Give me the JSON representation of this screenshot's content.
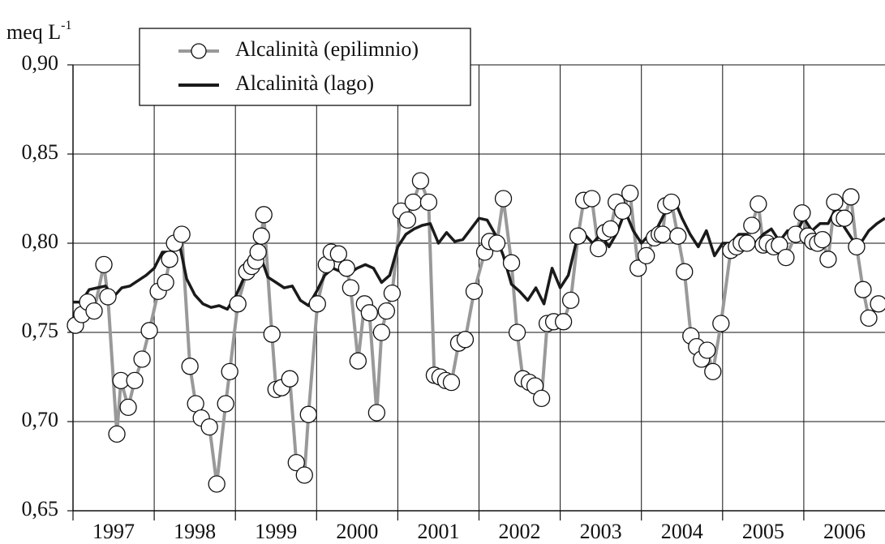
{
  "chart_data": {
    "type": "line",
    "y_label": "meq L",
    "y_label_sup": "-1",
    "ylim": [
      0.65,
      0.9
    ],
    "yticks": [
      {
        "value": 0.65,
        "label": "0,65"
      },
      {
        "value": 0.7,
        "label": "0,70"
      },
      {
        "value": 0.75,
        "label": "0,75"
      },
      {
        "value": 0.8,
        "label": "0,80"
      },
      {
        "value": 0.85,
        "label": "0,85"
      },
      {
        "value": 0.9,
        "label": "0,90"
      }
    ],
    "xlim": [
      1997,
      2007
    ],
    "xticks": [
      {
        "value": 1997.5,
        "label": "1997"
      },
      {
        "value": 1998.5,
        "label": "1998"
      },
      {
        "value": 1999.5,
        "label": "1999"
      },
      {
        "value": 2000.5,
        "label": "2000"
      },
      {
        "value": 2001.5,
        "label": "2001"
      },
      {
        "value": 2002.5,
        "label": "2002"
      },
      {
        "value": 2003.5,
        "label": "2003"
      },
      {
        "value": 2004.5,
        "label": "2004"
      },
      {
        "value": 2005.5,
        "label": "2005"
      },
      {
        "value": 2006.5,
        "label": "2006"
      }
    ],
    "xgrid": [
      1997,
      1998,
      1999,
      2000,
      2001,
      2002,
      2003,
      2004,
      2005,
      2006
    ],
    "grid": true,
    "legend": "top-left",
    "series": [
      {
        "name": "Alcalinità (epilimnio)",
        "color": "#999999",
        "marker": "circle",
        "x": [
          1997.03,
          1997.11,
          1997.18,
          1997.26,
          1997.38,
          1997.43,
          1997.54,
          1997.59,
          1997.68,
          1997.76,
          1997.85,
          1997.94,
          1998.05,
          1998.14,
          1998.19,
          1998.25,
          1998.34,
          1998.44,
          1998.51,
          1998.58,
          1998.68,
          1998.77,
          1998.88,
          1998.93,
          1999.03,
          1999.14,
          1999.2,
          1999.25,
          1999.28,
          1999.32,
          1999.35,
          1999.45,
          1999.5,
          1999.57,
          1999.67,
          1999.75,
          1999.85,
          1999.9,
          2000.01,
          2000.12,
          2000.18,
          2000.27,
          2000.37,
          2000.42,
          2000.51,
          2000.59,
          2000.65,
          2000.74,
          2000.8,
          2000.86,
          2000.93,
          2001.04,
          2001.12,
          2001.19,
          2001.28,
          2001.38,
          2001.45,
          2001.52,
          2001.59,
          2001.66,
          2001.75,
          2001.83,
          2001.94,
          2002.07,
          2002.13,
          2002.22,
          2002.3,
          2002.4,
          2002.47,
          2002.54,
          2002.62,
          2002.69,
          2002.77,
          2002.84,
          2002.92,
          2003.04,
          2003.13,
          2003.22,
          2003.29,
          2003.39,
          2003.47,
          2003.55,
          2003.62,
          2003.69,
          2003.77,
          2003.86,
          2003.96,
          2004.06,
          2004.16,
          2004.22,
          2004.26,
          2004.3,
          2004.37,
          2004.45,
          2004.53,
          2004.61,
          2004.68,
          2004.74,
          2004.81,
          2004.88,
          2004.98,
          2005.1,
          2005.17,
          2005.23,
          2005.3,
          2005.36,
          2005.44,
          2005.5,
          2005.55,
          2005.63,
          2005.7,
          2005.78,
          2005.9,
          2005.98,
          2006.05,
          2006.11,
          2006.17,
          2006.23,
          2006.3,
          2006.38,
          2006.44,
          2006.5,
          2006.58,
          2006.65,
          2006.73,
          2006.8,
          2006.92
        ],
        "values": [
          0.754,
          0.76,
          0.767,
          0.762,
          0.788,
          0.77,
          0.693,
          0.723,
          0.708,
          0.723,
          0.735,
          0.751,
          0.773,
          0.778,
          0.791,
          0.8,
          0.805,
          0.731,
          0.71,
          0.702,
          0.697,
          0.665,
          0.71,
          0.728,
          0.766,
          0.784,
          0.787,
          0.79,
          0.795,
          0.804,
          0.816,
          0.749,
          0.718,
          0.719,
          0.724,
          0.677,
          0.67,
          0.704,
          0.766,
          0.788,
          0.795,
          0.794,
          0.786,
          0.775,
          0.734,
          0.766,
          0.761,
          0.705,
          0.75,
          0.762,
          0.772,
          0.818,
          0.813,
          0.823,
          0.835,
          0.823,
          0.726,
          0.725,
          0.723,
          0.722,
          0.744,
          0.746,
          0.773,
          0.795,
          0.801,
          0.8,
          0.825,
          0.789,
          0.75,
          0.724,
          0.722,
          0.72,
          0.713,
          0.755,
          0.756,
          0.756,
          0.768,
          0.804,
          0.824,
          0.825,
          0.797,
          0.806,
          0.808,
          0.823,
          0.818,
          0.828,
          0.786,
          0.793,
          0.803,
          0.805,
          0.805,
          0.821,
          0.823,
          0.804,
          0.784,
          0.748,
          0.742,
          0.735,
          0.74,
          0.728,
          0.755,
          0.796,
          0.798,
          0.8,
          0.8,
          0.81,
          0.822,
          0.799,
          0.8,
          0.798,
          0.799,
          0.792,
          0.805,
          0.817,
          0.804,
          0.801,
          0.8,
          0.802,
          0.791,
          0.823,
          0.814,
          0.814,
          0.826,
          0.798,
          0.774,
          0.758,
          0.766
        ]
      },
      {
        "name": "Alcalinità (lago)",
        "color": "#1a1a1a",
        "x": [
          1997.0,
          1997.1,
          1997.2,
          1997.3,
          1997.4,
          1997.5,
          1997.6,
          1997.7,
          1997.8,
          1997.9,
          1998.0,
          1998.1,
          1998.2,
          1998.3,
          1998.4,
          1998.5,
          1998.6,
          1998.7,
          1998.8,
          1998.9,
          1999.0,
          1999.1,
          1999.2,
          1999.3,
          1999.4,
          1999.5,
          1999.6,
          1999.7,
          1999.8,
          1999.9,
          2000.0,
          2000.1,
          2000.2,
          2000.3,
          2000.4,
          2000.5,
          2000.6,
          2000.7,
          2000.8,
          2000.9,
          2001.0,
          2001.1,
          2001.2,
          2001.3,
          2001.4,
          2001.5,
          2001.6,
          2001.7,
          2001.8,
          2001.9,
          2002.0,
          2002.1,
          2002.2,
          2002.3,
          2002.4,
          2002.5,
          2002.6,
          2002.7,
          2002.8,
          2002.9,
          2003.0,
          2003.1,
          2003.2,
          2003.3,
          2003.4,
          2003.5,
          2003.6,
          2003.7,
          2003.8,
          2003.9,
          2004.0,
          2004.1,
          2004.2,
          2004.3,
          2004.4,
          2004.5,
          2004.6,
          2004.7,
          2004.8,
          2004.9,
          2005.0,
          2005.1,
          2005.2,
          2005.3,
          2005.4,
          2005.5,
          2005.6,
          2005.7,
          2005.8,
          2005.9,
          2006.0,
          2006.1,
          2006.2,
          2006.3,
          2006.4,
          2006.5,
          2006.6,
          2006.7,
          2006.8,
          2006.9,
          2007.0
        ],
        "values": [
          0.767,
          0.767,
          0.774,
          0.775,
          0.776,
          0.77,
          0.775,
          0.776,
          0.779,
          0.782,
          0.786,
          0.795,
          0.795,
          0.802,
          0.78,
          0.771,
          0.766,
          0.764,
          0.765,
          0.763,
          0.77,
          0.78,
          0.786,
          0.794,
          0.781,
          0.778,
          0.775,
          0.776,
          0.768,
          0.765,
          0.773,
          0.782,
          0.786,
          0.784,
          0.783,
          0.786,
          0.788,
          0.786,
          0.778,
          0.782,
          0.798,
          0.805,
          0.808,
          0.81,
          0.811,
          0.8,
          0.806,
          0.801,
          0.802,
          0.808,
          0.814,
          0.813,
          0.805,
          0.793,
          0.777,
          0.773,
          0.768,
          0.775,
          0.766,
          0.786,
          0.775,
          0.782,
          0.801,
          0.805,
          0.8,
          0.805,
          0.798,
          0.806,
          0.818,
          0.807,
          0.8,
          0.805,
          0.809,
          0.818,
          0.825,
          0.814,
          0.805,
          0.798,
          0.807,
          0.793,
          0.8,
          0.8,
          0.805,
          0.805,
          0.8,
          0.805,
          0.808,
          0.801,
          0.807,
          0.805,
          0.814,
          0.807,
          0.811,
          0.811,
          0.82,
          0.809,
          0.802,
          0.8,
          0.807,
          0.811,
          0.814
        ]
      }
    ]
  }
}
